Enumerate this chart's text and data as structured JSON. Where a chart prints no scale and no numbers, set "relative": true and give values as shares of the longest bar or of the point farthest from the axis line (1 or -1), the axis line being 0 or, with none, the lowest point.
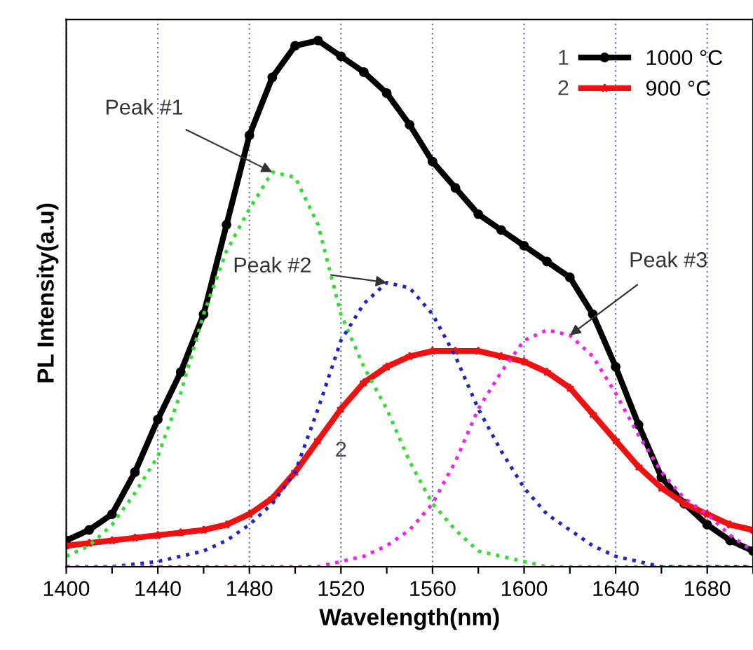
{
  "chart_data": {
    "type": "line",
    "xlabel": "Wavelength(nm)",
    "ylabel": "PL Intensity(a.u)",
    "relative": true,
    "grid": "x",
    "legend": "top right",
    "xlim": [
      1400,
      1700
    ],
    "xticks": [
      1400,
      {
        "value": 1420,
        "label": null
      },
      1440,
      {
        "value": 1460,
        "label": null
      },
      1480,
      {
        "value": 1500,
        "label": null
      },
      1520,
      {
        "value": 1540,
        "label": null
      },
      1560,
      {
        "value": 1580,
        "label": null
      },
      1600,
      {
        "value": 1620,
        "label": null
      },
      1640,
      {
        "value": 1660,
        "label": null
      },
      1680,
      {
        "value": 1700,
        "label": null
      }
    ],
    "x": [
      1400,
      1410,
      1420,
      1430,
      1440,
      1450,
      1460,
      1470,
      1480,
      1490,
      1500,
      1510,
      1520,
      1530,
      1540,
      1550,
      1560,
      1570,
      1580,
      1590,
      1600,
      1610,
      1620,
      1630,
      1640,
      1650,
      1660,
      1670,
      1680,
      1690,
      1700
    ],
    "series": [
      {
        "name": "1000 °C",
        "color": "#000000",
        "marker": "circle",
        "line_style": "solid",
        "values": [
          0.05,
          0.07,
          0.1,
          0.18,
          0.28,
          0.37,
          0.48,
          0.65,
          0.82,
          0.93,
          0.99,
          1.0,
          0.97,
          0.94,
          0.9,
          0.84,
          0.77,
          0.72,
          0.67,
          0.64,
          0.61,
          0.58,
          0.55,
          0.48,
          0.38,
          0.27,
          0.17,
          0.12,
          0.08,
          0.05,
          0.03
        ]
      },
      {
        "name": "900 °C",
        "color": "#ee1111",
        "marker": "star",
        "line_style": "solid",
        "values": [
          0.04,
          0.045,
          0.05,
          0.055,
          0.06,
          0.065,
          0.07,
          0.08,
          0.1,
          0.13,
          0.18,
          0.24,
          0.3,
          0.35,
          0.38,
          0.4,
          0.41,
          0.41,
          0.41,
          0.4,
          0.39,
          0.37,
          0.34,
          0.29,
          0.24,
          0.19,
          0.15,
          0.12,
          0.1,
          0.08,
          0.07
        ]
      },
      {
        "color": "#33dd33",
        "marker": "none",
        "line_style": "dotted",
        "values": [
          0.02,
          0.04,
          0.08,
          0.14,
          0.21,
          0.33,
          0.48,
          0.6,
          0.68,
          0.75,
          0.74,
          0.65,
          0.48,
          0.38,
          0.3,
          0.2,
          0.12,
          0.07,
          0.03,
          0.02,
          0.01,
          0,
          0,
          0,
          0,
          0,
          0,
          0,
          0,
          0,
          0
        ]
      },
      {
        "color": "#2222cc",
        "marker": "none",
        "line_style": "dotted",
        "values": [
          0,
          0,
          0,
          0.005,
          0.01,
          0.02,
          0.03,
          0.05,
          0.08,
          0.12,
          0.18,
          0.3,
          0.43,
          0.5,
          0.54,
          0.53,
          0.48,
          0.4,
          0.3,
          0.22,
          0.15,
          0.1,
          0.07,
          0.04,
          0.02,
          0.01,
          0,
          0,
          0,
          0,
          0
        ]
      },
      {
        "color": "#ee22ee",
        "marker": "none",
        "line_style": "dotted",
        "values": [
          0,
          0,
          0,
          0,
          0,
          0,
          0,
          0,
          0,
          0,
          0,
          0,
          0.01,
          0.02,
          0.04,
          0.07,
          0.12,
          0.2,
          0.3,
          0.37,
          0.43,
          0.45,
          0.44,
          0.4,
          0.33,
          0.25,
          0.18,
          0.13,
          0.1,
          0.06,
          0.03
        ]
      }
    ],
    "annotations": [
      {
        "text": "Peak #1",
        "x": 1490,
        "y": 0.75
      },
      {
        "text": "Peak #2",
        "x": 1540,
        "y": 0.54
      },
      {
        "text": "Peak #3",
        "x": 1620,
        "y": 0.44
      },
      {
        "text": "2",
        "x": 1520,
        "y": 0.3
      },
      "1",
      "2"
    ]
  }
}
